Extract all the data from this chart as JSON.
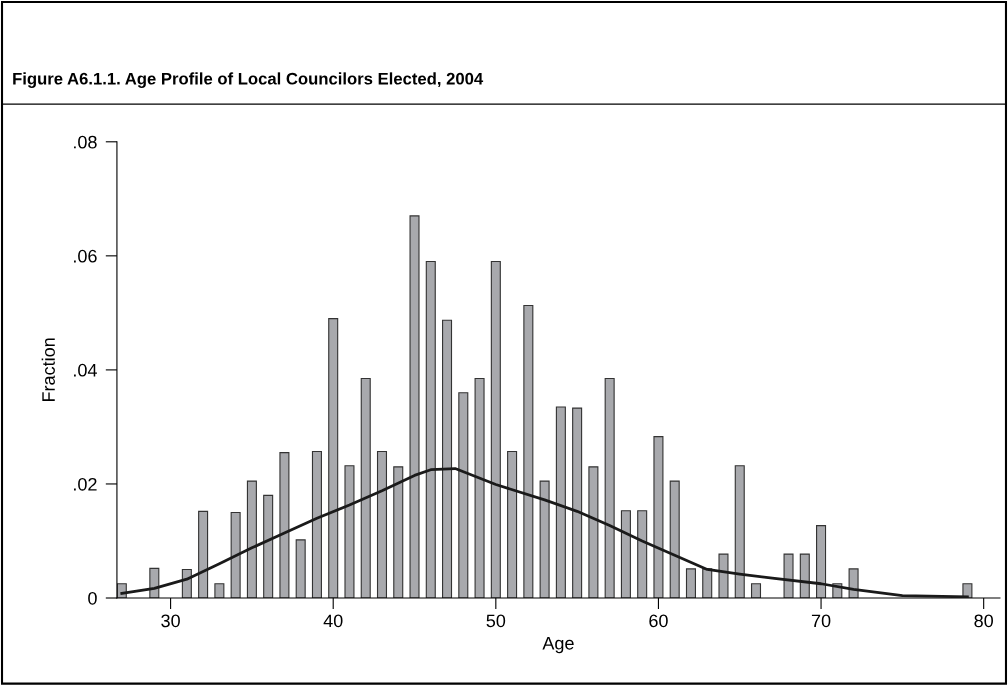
{
  "chart_data": {
    "type": "bar",
    "title": "Figure A6.1.1. Age Profile of Local Councilors Elected, 2004",
    "xlabel": "Age",
    "ylabel": "Fraction",
    "series": [
      {
        "color": "#a8a9ad",
        "x": [
          27,
          28,
          29,
          30,
          31,
          32,
          33,
          34,
          35,
          36,
          37,
          38,
          39,
          40,
          41,
          42,
          43,
          44,
          45,
          46,
          47,
          48,
          49,
          50,
          51,
          52,
          53,
          54,
          55,
          56,
          57,
          58,
          59,
          60,
          61,
          62,
          63,
          64,
          65,
          66,
          67,
          68,
          69,
          70,
          71,
          72,
          73,
          74,
          75,
          76,
          77,
          78,
          79
        ],
        "values": [
          0.0025,
          0,
          0.0052,
          0,
          0.005,
          0.0152,
          0.0025,
          0.015,
          0.0205,
          0.018,
          0.0255,
          0.0102,
          0.0257,
          0.049,
          0.0232,
          0.0385,
          0.0257,
          0.023,
          0.067,
          0.059,
          0.0487,
          0.036,
          0.0385,
          0.059,
          0.0257,
          0.0513,
          0.0205,
          0.0335,
          0.0333,
          0.023,
          0.0385,
          0.0153,
          0.0153,
          0.0283,
          0.0205,
          0.0051,
          0.0051,
          0.0077,
          0.0232,
          0.0025,
          0,
          0.0077,
          0.0077,
          0.0127,
          0.0025,
          0.0051,
          0,
          0,
          0,
          0,
          0,
          0,
          0.0025
        ]
      },
      {
        "type": "line",
        "color": "#1a1a1a",
        "x": [
          27,
          29,
          31,
          33,
          35,
          37,
          39,
          41,
          43,
          45,
          46,
          47.5,
          50,
          53,
          55,
          57,
          59,
          61,
          63,
          65,
          67,
          70,
          72,
          75,
          79
        ],
        "values": [
          0.0008,
          0.0017,
          0.0033,
          0.006,
          0.0088,
          0.0114,
          0.014,
          0.0163,
          0.0188,
          0.0215,
          0.0225,
          0.0227,
          0.0199,
          0.0172,
          0.0152,
          0.0127,
          0.01,
          0.0075,
          0.005,
          0.0042,
          0.0035,
          0.0025,
          0.0015,
          0.0004,
          0.0002
        ]
      }
    ],
    "xlim": [
      26.7,
      81
    ],
    "xticks": [
      30,
      40,
      50,
      60,
      70,
      80
    ],
    "ylim": [
      0,
      0.08
    ],
    "yticks": [
      {
        "value": 0,
        "label": "0"
      },
      {
        "value": 0.02,
        "label": ".02"
      },
      {
        "value": 0.04,
        "label": ".04"
      },
      {
        "value": 0.06,
        "label": ".06"
      },
      {
        "value": 0.08,
        "label": ".08"
      }
    ],
    "grid": false,
    "legend": false
  }
}
